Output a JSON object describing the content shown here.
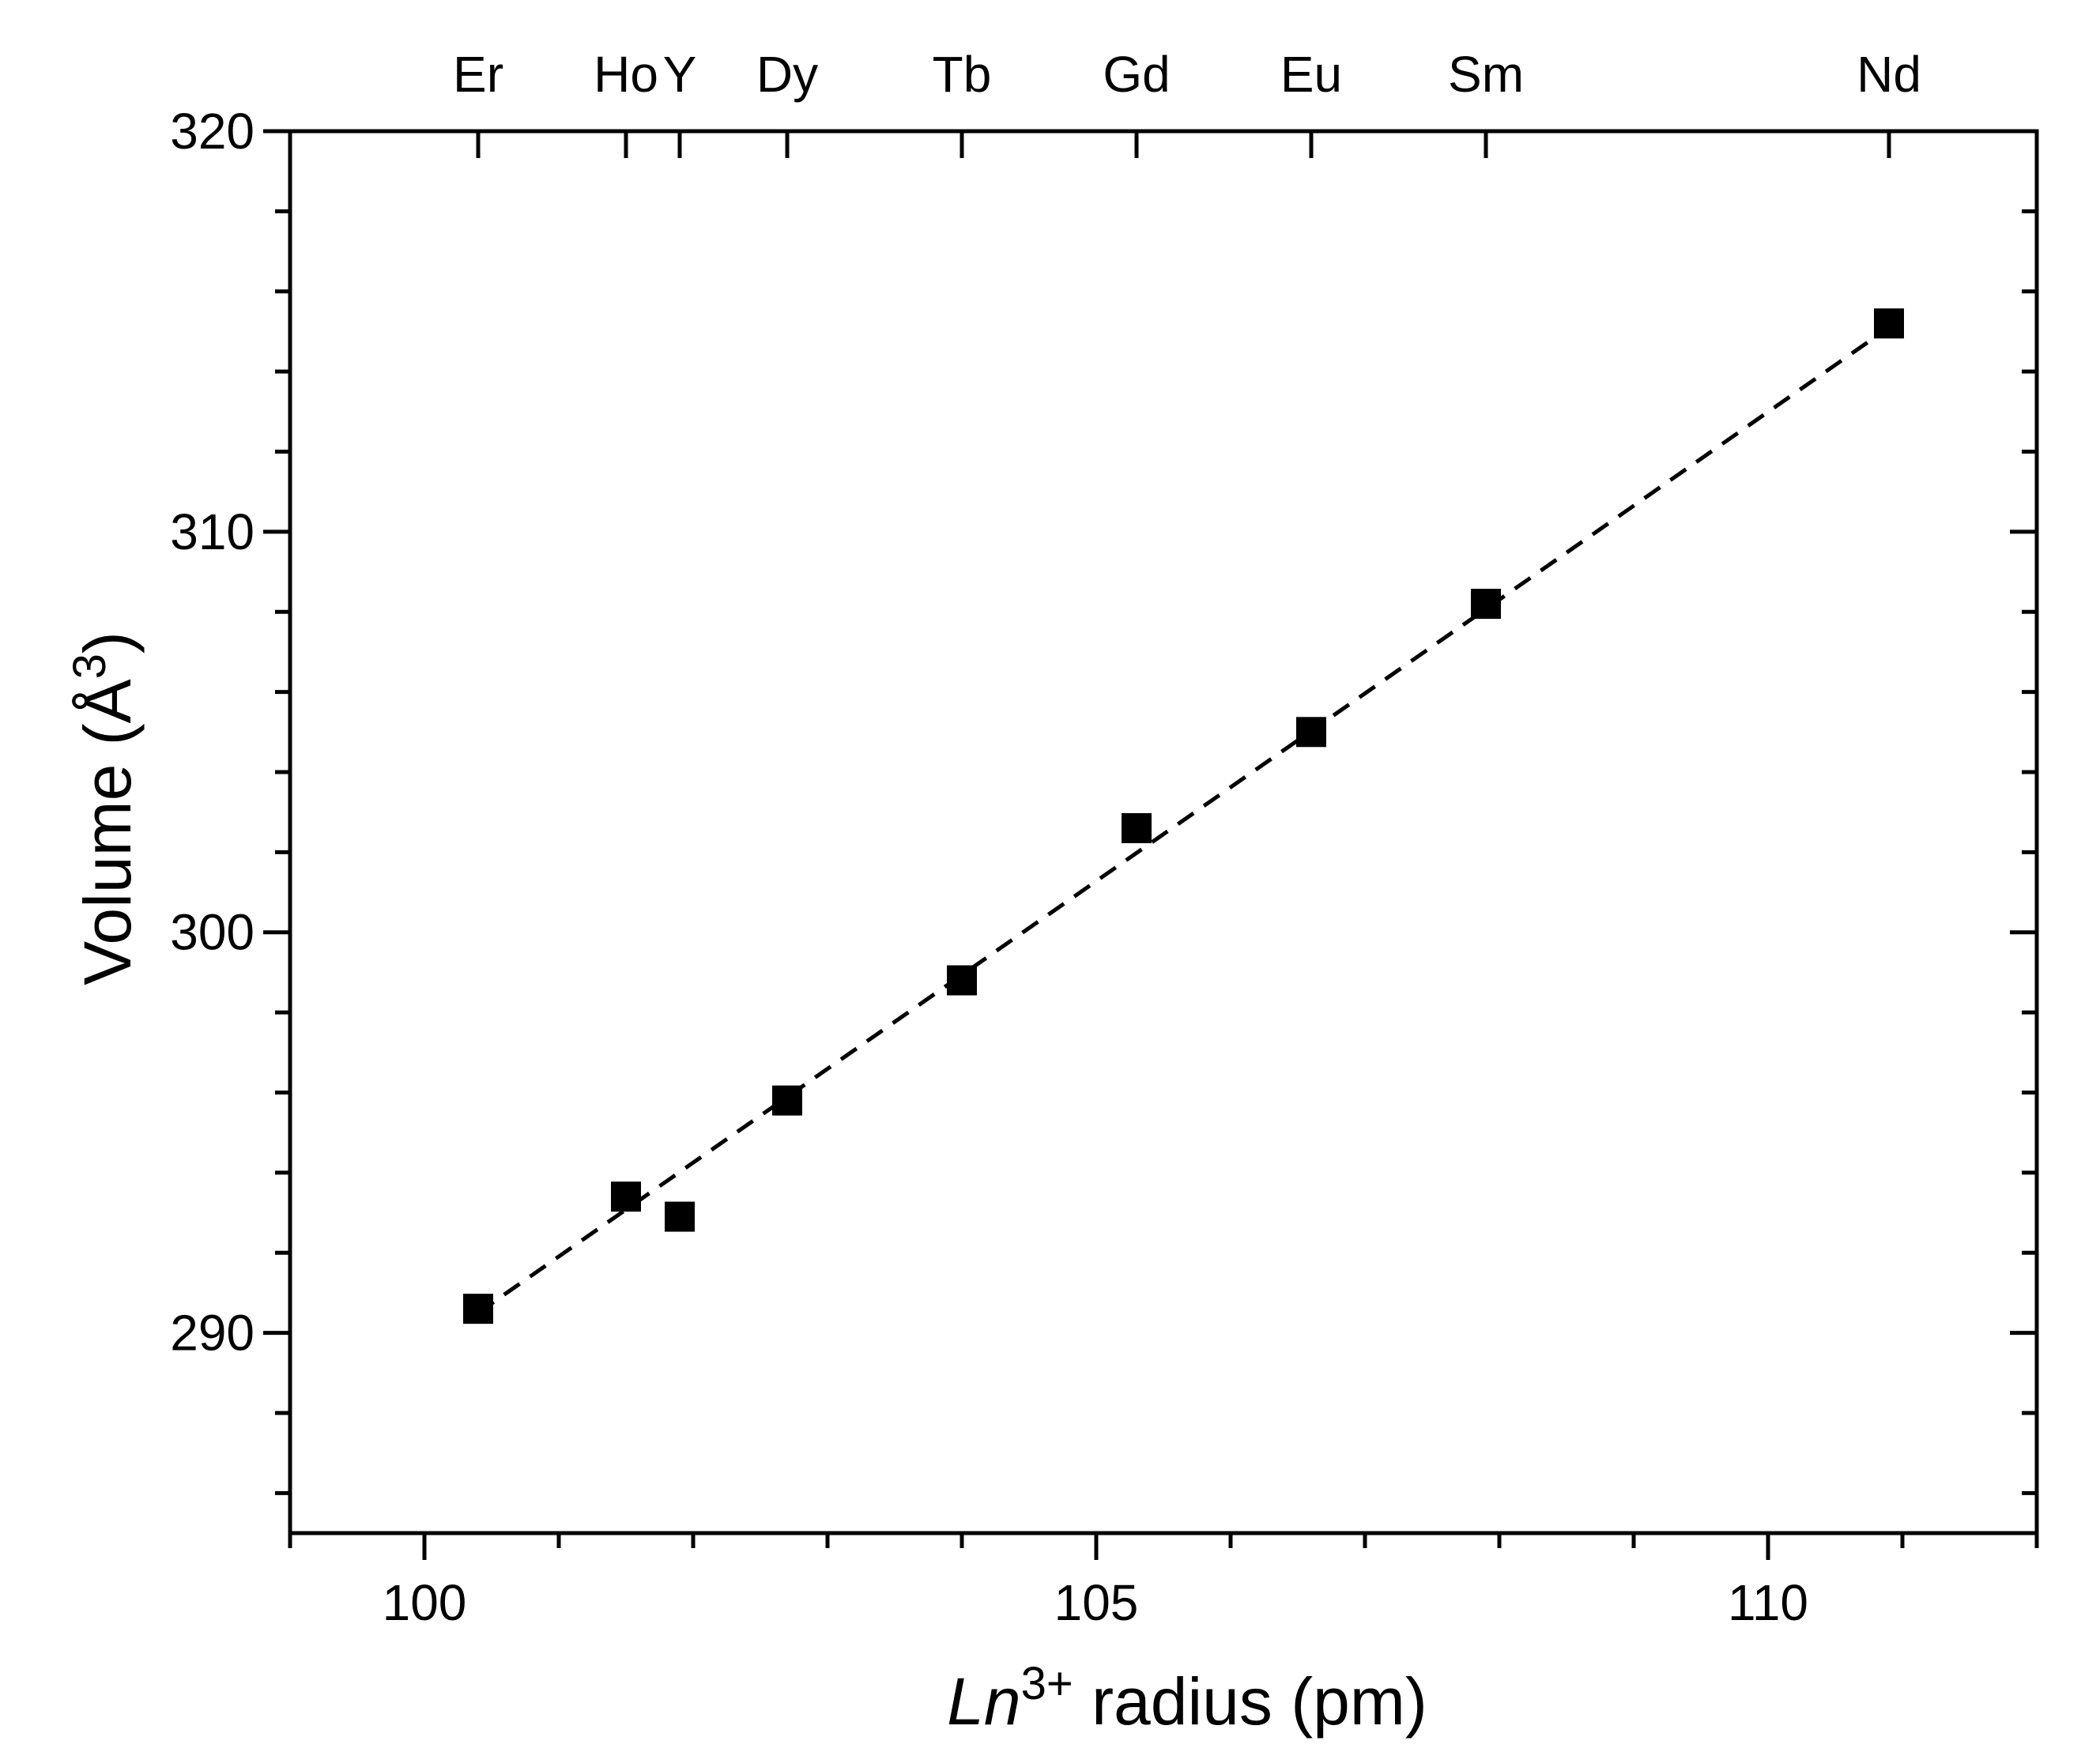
{
  "chart_data": {
    "type": "scatter",
    "xlabel": {
      "italic": "Ln",
      "sup": "3+",
      "rest": " radius (pm)"
    },
    "ylabel": {
      "text": "Volume (Å",
      "sup": "3",
      "close": ")"
    },
    "xlim": [
      99,
      112
    ],
    "ylim": [
      285,
      320
    ],
    "xticks": [
      100,
      105,
      110
    ],
    "yticks": [
      290,
      300,
      310,
      320
    ],
    "top_axis_labels": [
      {
        "label": "Er",
        "x": 100.4
      },
      {
        "label": "Ho",
        "x": 101.5
      },
      {
        "label": "Y",
        "x": 101.9
      },
      {
        "label": "Dy",
        "x": 102.7
      },
      {
        "label": "Tb",
        "x": 104.0
      },
      {
        "label": "Gd",
        "x": 105.3
      },
      {
        "label": "Eu",
        "x": 106.6
      },
      {
        "label": "Sm",
        "x": 107.9
      },
      {
        "label": "Nd",
        "x": 110.9
      }
    ],
    "series": [
      {
        "marker": "square",
        "points": [
          {
            "x": 100.4,
            "y": 290.6
          },
          {
            "x": 101.5,
            "y": 293.4
          },
          {
            "x": 101.9,
            "y": 292.9
          },
          {
            "x": 102.7,
            "y": 295.8
          },
          {
            "x": 104.0,
            "y": 298.8
          },
          {
            "x": 105.3,
            "y": 302.6
          },
          {
            "x": 106.6,
            "y": 305.0
          },
          {
            "x": 107.9,
            "y": 308.2
          },
          {
            "x": 110.9,
            "y": 315.2
          }
        ]
      }
    ],
    "fit_line": {
      "style": "dashed",
      "from": {
        "x": 100.4,
        "y": 290.5
      },
      "to": {
        "x": 110.9,
        "y": 315.1
      }
    },
    "grid": false,
    "colors": {
      "marker": "#000000",
      "line": "#000000",
      "axes": "#000000"
    }
  }
}
